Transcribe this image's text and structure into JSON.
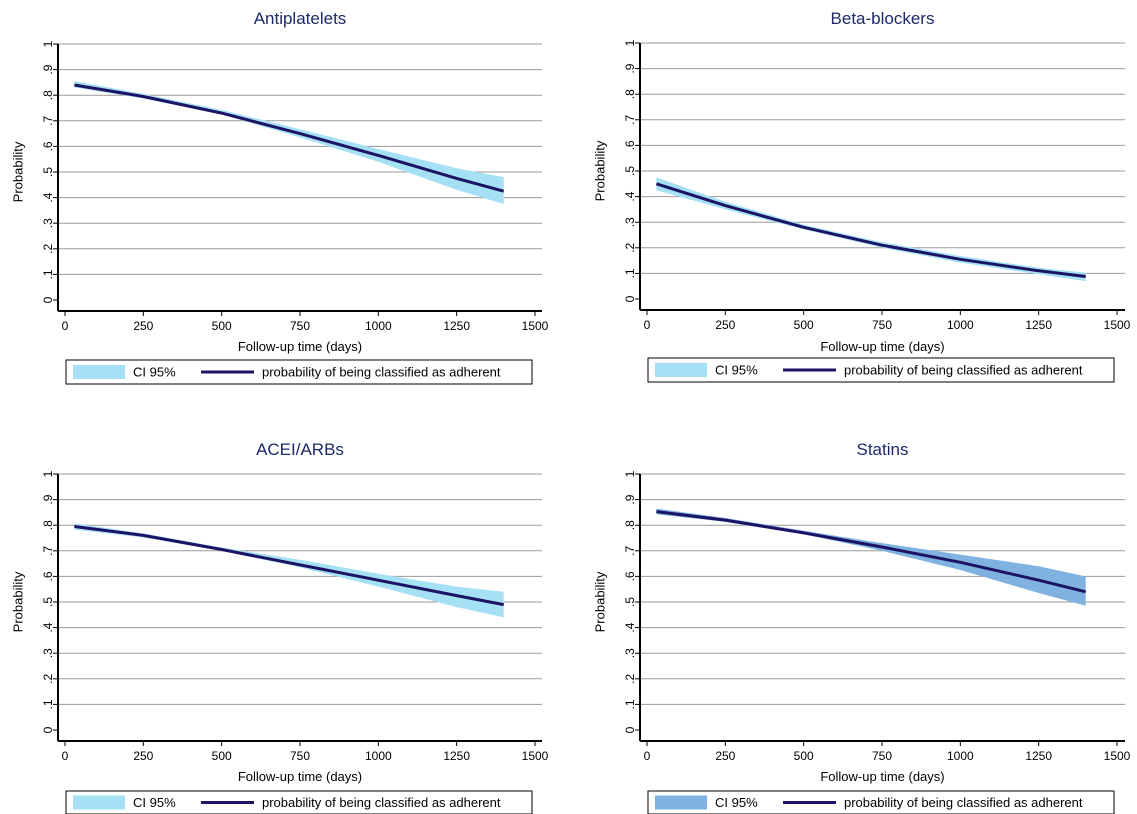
{
  "colors": {
    "line": "#1b1464",
    "band": "#a6e0f5",
    "band_alt": "#7fb2e0",
    "grid": "#9a9a9a",
    "title": "#1c2a6b"
  },
  "chart_data": [
    {
      "type": "line",
      "title": "Antiplatelets",
      "xlabel": "Follow-up time (days)",
      "ylabel": "Probability",
      "xlim": [
        0,
        1500
      ],
      "ylim": [
        0,
        1
      ],
      "x_ticks": [
        "0",
        "250",
        "500",
        "750",
        "1000",
        "1250",
        "1500"
      ],
      "y_ticks": [
        "0",
        ".1",
        ".2",
        ".3",
        ".4",
        ".5",
        ".6",
        ".7",
        ".8",
        ".9",
        "1"
      ],
      "grid": true,
      "legend": {
        "position": "bottom",
        "entries": [
          "CI 95%",
          "probability of being classified as adherent"
        ]
      },
      "band_color": "#a6e0f5",
      "x": [
        30,
        250,
        500,
        750,
        1000,
        1250,
        1400
      ],
      "series": [
        {
          "name": "probability of being classified as adherent",
          "values": [
            0.84,
            0.795,
            0.73,
            0.65,
            0.565,
            0.475,
            0.425
          ]
        },
        {
          "name": "CI 95%",
          "lower": [
            0.83,
            0.787,
            0.725,
            0.635,
            0.54,
            0.43,
            0.375
          ],
          "upper": [
            0.855,
            0.805,
            0.742,
            0.667,
            0.59,
            0.515,
            0.48
          ]
        }
      ]
    },
    {
      "type": "line",
      "title": "Beta-blockers",
      "xlabel": "Follow-up time (days)",
      "ylabel": "Probability",
      "xlim": [
        0,
        1500
      ],
      "ylim": [
        0,
        1
      ],
      "x_ticks": [
        "0",
        "250",
        "500",
        "750",
        "1000",
        "1250",
        "1500"
      ],
      "y_ticks": [
        "0",
        ".1",
        ".2",
        ".3",
        ".4",
        ".5",
        ".6",
        ".7",
        ".8",
        ".9",
        "1"
      ],
      "grid": true,
      "legend": {
        "position": "bottom",
        "entries": [
          "CI 95%",
          "probability of being classified as adherent"
        ]
      },
      "band_color": "#a6e0f5",
      "x": [
        30,
        250,
        500,
        750,
        1000,
        1250,
        1400
      ],
      "series": [
        {
          "name": "probability of being classified as adherent",
          "values": [
            0.45,
            0.365,
            0.28,
            0.21,
            0.155,
            0.11,
            0.088
          ]
        },
        {
          "name": "CI 95%",
          "lower": [
            0.425,
            0.35,
            0.272,
            0.2,
            0.142,
            0.097,
            0.07
          ],
          "upper": [
            0.475,
            0.38,
            0.29,
            0.222,
            0.168,
            0.122,
            0.103
          ]
        }
      ]
    },
    {
      "type": "line",
      "title": "ACEI/ARBs",
      "xlabel": "Follow-up time (days)",
      "ylabel": "Probability",
      "xlim": [
        0,
        1500
      ],
      "ylim": [
        0,
        1
      ],
      "x_ticks": [
        "0",
        "250",
        "500",
        "750",
        "1000",
        "1250",
        "1500"
      ],
      "y_ticks": [
        "0",
        ".1",
        ".2",
        ".3",
        ".4",
        ".5",
        ".6",
        ".7",
        ".8",
        ".9",
        "1"
      ],
      "grid": true,
      "legend": {
        "position": "bottom",
        "entries": [
          "CI 95%",
          "probability of being classified as adherent"
        ]
      },
      "band_color": "#a6e0f5",
      "x": [
        30,
        250,
        500,
        750,
        1000,
        1250,
        1400
      ],
      "series": [
        {
          "name": "probability of being classified as adherent",
          "values": [
            0.795,
            0.76,
            0.705,
            0.645,
            0.585,
            0.525,
            0.49
          ]
        },
        {
          "name": "CI 95%",
          "lower": [
            0.783,
            0.752,
            0.7,
            0.635,
            0.56,
            0.48,
            0.44
          ],
          "upper": [
            0.807,
            0.768,
            0.713,
            0.665,
            0.61,
            0.56,
            0.54
          ]
        }
      ]
    },
    {
      "type": "line",
      "title": "Statins",
      "xlabel": "Follow-up time (days)",
      "ylabel": "Probability",
      "xlim": [
        0,
        1500
      ],
      "ylim": [
        0,
        1
      ],
      "x_ticks": [
        "0",
        "250",
        "500",
        "750",
        "1000",
        "1250",
        "1500"
      ],
      "y_ticks": [
        "0",
        ".1",
        ".2",
        ".3",
        ".4",
        ".5",
        ".6",
        ".7",
        ".8",
        ".9",
        "1"
      ],
      "grid": true,
      "legend": {
        "position": "bottom",
        "entries": [
          "CI 95%",
          "probability of being classified as adherent"
        ]
      },
      "band_color": "#7fb2e0",
      "x": [
        30,
        250,
        500,
        750,
        1000,
        1250,
        1400
      ],
      "series": [
        {
          "name": "probability of being classified as adherent",
          "values": [
            0.853,
            0.82,
            0.77,
            0.715,
            0.655,
            0.585,
            0.54
          ]
        },
        {
          "name": "CI 95%",
          "lower": [
            0.843,
            0.813,
            0.765,
            0.7,
            0.625,
            0.535,
            0.485
          ],
          "upper": [
            0.865,
            0.828,
            0.778,
            0.73,
            0.685,
            0.64,
            0.6
          ]
        }
      ]
    }
  ]
}
